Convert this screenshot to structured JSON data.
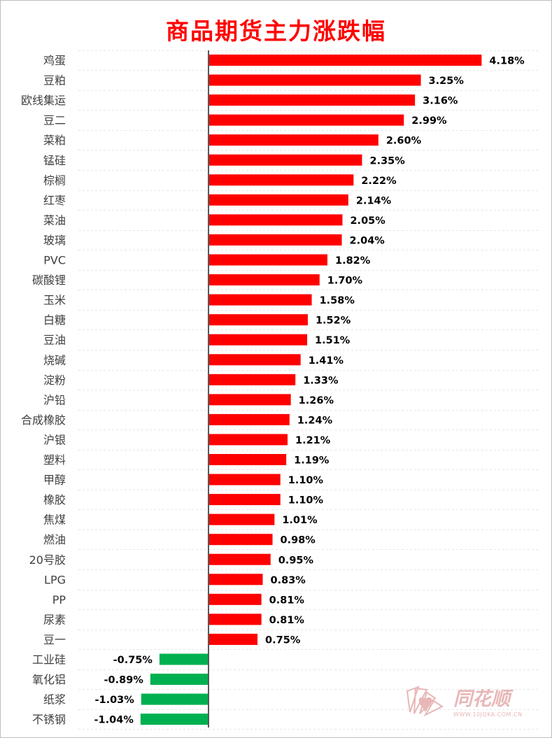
{
  "chart_data": {
    "type": "bar",
    "orientation": "horizontal",
    "title": "商品期货主力涨跌幅",
    "categories": [
      "鸡蛋",
      "豆粕",
      "欧线集运",
      "豆二",
      "菜粕",
      "锰硅",
      "棕榈",
      "红枣",
      "菜油",
      "玻璃",
      "PVC",
      "碳酸锂",
      "玉米",
      "白糖",
      "豆油",
      "烧碱",
      "淀粉",
      "沪铅",
      "合成橡胶",
      "沪银",
      "塑料",
      "甲醇",
      "橡胶",
      "焦煤",
      "燃油",
      "20号胶",
      "LPG",
      "PP",
      "尿素",
      "豆一",
      "工业硅",
      "氧化铝",
      "纸浆",
      "不锈钢"
    ],
    "values": [
      4.18,
      3.25,
      3.16,
      2.99,
      2.6,
      2.35,
      2.22,
      2.14,
      2.05,
      2.04,
      1.82,
      1.7,
      1.58,
      1.52,
      1.51,
      1.41,
      1.33,
      1.26,
      1.24,
      1.21,
      1.19,
      1.1,
      1.1,
      1.01,
      0.98,
      0.95,
      0.83,
      0.81,
      0.81,
      0.75,
      -0.75,
      -0.89,
      -1.03,
      -1.04
    ],
    "value_labels": [
      "4.18%",
      "3.25%",
      "3.16%",
      "2.99%",
      "2.60%",
      "2.35%",
      "2.22%",
      "2.14%",
      "2.05%",
      "2.04%",
      "1.82%",
      "1.70%",
      "1.58%",
      "1.52%",
      "1.51%",
      "1.41%",
      "1.33%",
      "1.26%",
      "1.24%",
      "1.21%",
      "1.19%",
      "1.10%",
      "1.10%",
      "1.01%",
      "0.98%",
      "0.95%",
      "0.83%",
      "0.81%",
      "0.81%",
      "0.75%",
      "-0.75%",
      "-0.89%",
      "-1.03%",
      "-1.04%"
    ],
    "xlabel": "",
    "ylabel": "",
    "grid": "horizontal dashed",
    "colors": {
      "positive": "#ff0000",
      "negative": "#00b050",
      "axis": "#595959"
    }
  },
  "watermark": {
    "brand": "同花顺",
    "url": "WWW.10JQKA.COM.CN"
  }
}
